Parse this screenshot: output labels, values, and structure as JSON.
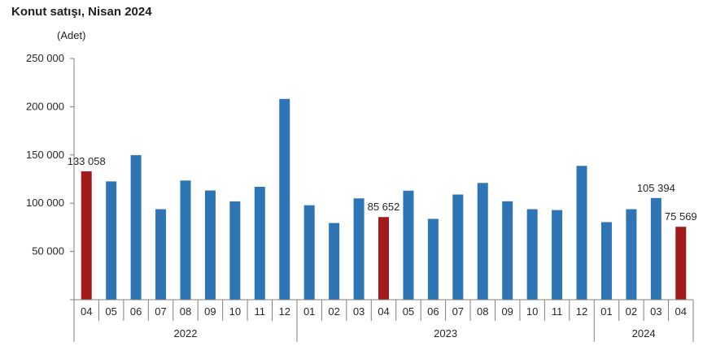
{
  "title": "Konut satışı, Nisan 2024",
  "unit": "(Adet)",
  "chart_data": {
    "type": "bar",
    "title": "Konut satışı, Nisan 2024",
    "ylabel": "(Adet)",
    "xlabel": "",
    "ylim": [
      0,
      250000
    ],
    "yticks": [
      0,
      50000,
      100000,
      150000,
      200000,
      250000
    ],
    "ytick_labels": [
      "",
      "50 000",
      "100 000",
      "150 000",
      "200 000",
      "250 000"
    ],
    "grid": false,
    "legend": "none",
    "colors": {
      "default": "#2E75B6",
      "highlight": "#A31A1A"
    },
    "years": [
      {
        "label": "2022",
        "count": 9
      },
      {
        "label": "2023",
        "count": 12
      },
      {
        "label": "2024",
        "count": 4
      }
    ],
    "categories": [
      "04",
      "05",
      "06",
      "07",
      "08",
      "09",
      "10",
      "11",
      "12",
      "01",
      "02",
      "03",
      "04",
      "05",
      "06",
      "07",
      "08",
      "09",
      "10",
      "11",
      "12",
      "01",
      "02",
      "03",
      "04"
    ],
    "values": [
      133058,
      122600,
      149800,
      93800,
      123500,
      113200,
      101900,
      117000,
      208100,
      97900,
      79500,
      105000,
      85652,
      113000,
      83800,
      109000,
      121000,
      102000,
      93800,
      92900,
      138700,
      80400,
      93800,
      105394,
      75569
    ],
    "highlight": [
      true,
      false,
      false,
      false,
      false,
      false,
      false,
      false,
      false,
      false,
      false,
      false,
      true,
      false,
      false,
      false,
      false,
      false,
      false,
      false,
      false,
      false,
      false,
      false,
      true
    ],
    "data_labels": [
      {
        "index": 0,
        "text": "133 058"
      },
      {
        "index": 12,
        "text": "85 652"
      },
      {
        "index": 23,
        "text": "105 394"
      },
      {
        "index": 24,
        "text": "75 569"
      }
    ]
  }
}
